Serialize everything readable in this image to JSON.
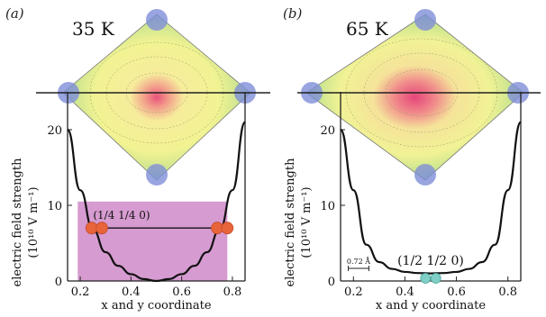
{
  "panels": [
    {
      "label": "(a)",
      "temperature": "35 K",
      "annotation": "(1/4 1/4 0)",
      "ylabel_line1": "electric field strength",
      "ylabel_line2": "(10¹⁰ V m⁻¹)",
      "xlabel": "x and y coordinate",
      "x_ticks": [
        "0.2",
        "0.4",
        "0.6",
        "0.8"
      ],
      "y_ticks": [
        "0",
        "10",
        "20"
      ],
      "atom_color": "#e8643a"
    },
    {
      "label": "(b)",
      "temperature": "65 K",
      "annotation": "(1/2 1/2 0)",
      "scale_bar": "0.72 Å",
      "ylabel_line1": "electric field strength",
      "ylabel_line2": "(10¹⁰ V m⁻¹)",
      "xlabel": "x and y coordinate",
      "x_ticks": [
        "0.2",
        "0.4",
        "0.6",
        "0.8"
      ],
      "y_ticks": [
        "0",
        "10",
        "20"
      ],
      "atom_color": "#7fcfc6"
    }
  ],
  "chart_data": [
    {
      "type": "line",
      "x": [
        0.15,
        0.2,
        0.25,
        0.3,
        0.35,
        0.4,
        0.45,
        0.5,
        0.55,
        0.6,
        0.65,
        0.7,
        0.75,
        0.8,
        0.85
      ],
      "series": [
        {
          "values": [
            20.0,
            12.0,
            6.8,
            3.8,
            2.0,
            0.9,
            0.25,
            0.0,
            0.25,
            0.9,
            2.0,
            3.8,
            6.8,
            12.0,
            21.0
          ]
        }
      ],
      "band": {
        "ymin": 0,
        "ymax": 10.5,
        "color": "#cf8ac8"
      },
      "level_line": {
        "x": [
          0.265,
          0.75
        ],
        "y": 7.0
      },
      "xlim": [
        0.15,
        0.85
      ],
      "ylim": [
        0,
        25
      ]
    },
    {
      "type": "line",
      "x": [
        0.15,
        0.2,
        0.25,
        0.3,
        0.35,
        0.4,
        0.45,
        0.5,
        0.55,
        0.6,
        0.65,
        0.7,
        0.75,
        0.8,
        0.85
      ],
      "series": [
        {
          "values": [
            20.0,
            12.0,
            4.8,
            2.5,
            1.6,
            1.2,
            1.05,
            1.0,
            1.05,
            1.2,
            1.6,
            2.5,
            4.8,
            12.0,
            21.0
          ]
        }
      ],
      "xlim": [
        0.15,
        0.85
      ],
      "ylim": [
        0,
        25
      ]
    }
  ]
}
